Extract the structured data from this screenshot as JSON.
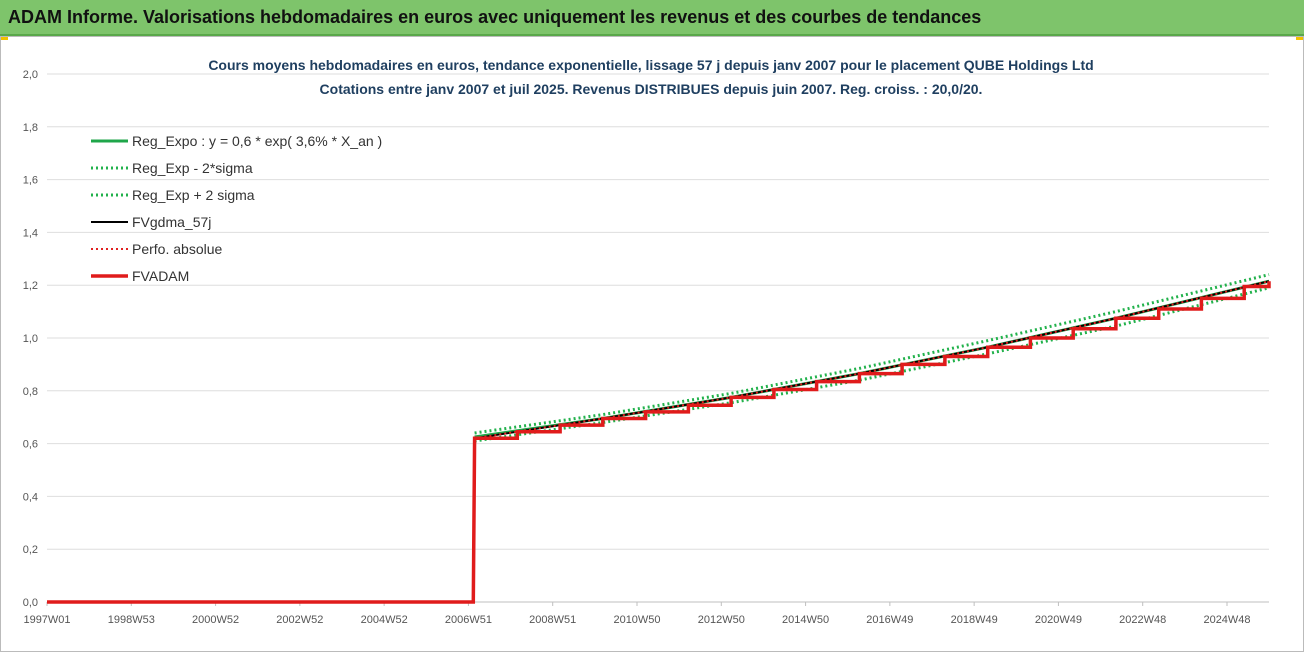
{
  "header": {
    "title": "ADAM Informe. Valorisations hebdomadaires en euros avec uniquement les revenus et des courbes de tendances"
  },
  "chart_data": {
    "type": "line",
    "title": "Cours moyens hebdomadaires en euros, tendance exponentielle, lissage 57 j depuis janv 2007 pour le placement QUBE Holdings Ltd",
    "subtitle": "Cotations entre janv 2007 et juil 2025. Revenus DISTRIBUES depuis juin 2007. Reg. croiss. : 20,0/20.",
    "xlabel": "",
    "ylabel": "",
    "x_ticks": [
      "1997W01",
      "1998W53",
      "2000W52",
      "2002W52",
      "2004W52",
      "2006W51",
      "2008W51",
      "2010W50",
      "2012W50",
      "2014W50",
      "2016W49",
      "2018W49",
      "2020W49",
      "2022W48",
      "2024W48"
    ],
    "y_ticks": [
      "0,0",
      "0,2",
      "0,4",
      "0,6",
      "0,8",
      "1,0",
      "1,2",
      "1,4",
      "1,6",
      "1,8",
      "2,0"
    ],
    "ylim": [
      0,
      2
    ],
    "xlim": [
      1997.0,
      2025.58
    ],
    "grid": true,
    "legend_position": "top-left",
    "colors": {
      "reg": "#1fa64a",
      "band": "#22b24c",
      "gdma": "#000000",
      "perfo": "#e02020",
      "fvadam": "#e01b1b"
    },
    "series": [
      {
        "name": "Reg_Expo : y = 0,6 * exp( 3,6% *  X_an )",
        "style": "solid-green",
        "x": [
          2007.0,
          2010.0,
          2013.0,
          2016.0,
          2019.0,
          2022.0,
          2025.58
        ],
        "y": [
          0.625,
          0.695,
          0.775,
          0.865,
          0.965,
          1.075,
          1.215
        ]
      },
      {
        "name": "Reg_Exp - 2*sigma",
        "style": "dotted-green",
        "x": [
          2007.0,
          2010.0,
          2013.0,
          2016.0,
          2019.0,
          2022.0,
          2025.58
        ],
        "y": [
          0.61,
          0.68,
          0.755,
          0.84,
          0.94,
          1.045,
          1.19
        ]
      },
      {
        "name": "Reg_Exp + 2 sigma",
        "style": "dotted-green",
        "x": [
          2007.0,
          2010.0,
          2013.0,
          2016.0,
          2019.0,
          2022.0,
          2025.58
        ],
        "y": [
          0.64,
          0.71,
          0.79,
          0.885,
          0.99,
          1.1,
          1.24
        ]
      },
      {
        "name": "FVgdma_57j",
        "style": "solid-black",
        "x": [
          1997.0,
          2006.97,
          2007.0,
          2010.0,
          2013.0,
          2016.0,
          2019.0,
          2022.0,
          2025.58
        ],
        "y": [
          0,
          0,
          0.62,
          0.695,
          0.775,
          0.865,
          0.965,
          1.075,
          1.215
        ]
      },
      {
        "name": "Perfo. absolue",
        "style": "dotted-red",
        "x": [
          1997.0,
          2006.97,
          2007.0,
          2010.0,
          2013.0,
          2016.0,
          2019.0,
          2022.0,
          2025.58
        ],
        "y": [
          0,
          0,
          0.62,
          0.695,
          0.775,
          0.865,
          0.965,
          1.075,
          1.215
        ]
      },
      {
        "name": "FVADAM",
        "style": "solid-red-thick",
        "x": [
          1997.0,
          2006.97,
          2007.0,
          2008.0,
          2009.0,
          2010.0,
          2011.0,
          2012.0,
          2013.0,
          2014.0,
          2015.0,
          2016.0,
          2017.0,
          2018.0,
          2019.0,
          2020.0,
          2021.0,
          2022.0,
          2023.0,
          2024.0,
          2025.0,
          2025.58
        ],
        "y": [
          0,
          0,
          0.62,
          0.645,
          0.67,
          0.695,
          0.72,
          0.745,
          0.775,
          0.805,
          0.835,
          0.865,
          0.9,
          0.93,
          0.965,
          1.0,
          1.035,
          1.075,
          1.11,
          1.15,
          1.195,
          1.215
        ]
      }
    ]
  }
}
